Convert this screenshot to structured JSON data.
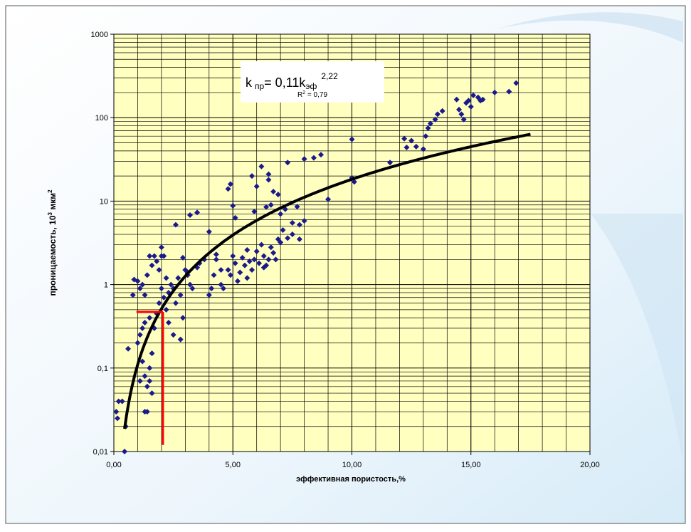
{
  "chart_data": {
    "type": "scatter",
    "x_label": "эффективная пористость,%",
    "y_label_parts": [
      "проницаемость, 10",
      "3",
      " мкм",
      "2"
    ],
    "equation_parts": [
      "k",
      "пр",
      "= 0,11k",
      "эф",
      "2,22"
    ],
    "r2_parts": [
      "R",
      "2",
      " = 0,79"
    ],
    "xlim": [
      0,
      20
    ],
    "xticks": [
      {
        "value": 0,
        "label": "0,00"
      },
      {
        "value": 5,
        "label": "5,00"
      },
      {
        "value": 10,
        "label": "10,00"
      },
      {
        "value": 15,
        "label": "15,00"
      },
      {
        "value": 20,
        "label": "20,00"
      }
    ],
    "x_minor_step": 1,
    "ylim": [
      0.01,
      1000
    ],
    "yticks": [
      {
        "value": 0.01,
        "label": "0,01"
      },
      {
        "value": 0.1,
        "label": "0,1"
      },
      1,
      10,
      100,
      1000
    ],
    "log_y": true,
    "grid": true,
    "minor_grid": true,
    "plot_color": "#ffffc0",
    "series": [
      {
        "color": "#1a1a8c",
        "x": [
          0.1,
          0.15,
          0.2,
          0.35,
          0.5,
          0.45,
          0.6,
          0.8,
          0.85,
          1.0,
          1.1,
          1.2,
          1.3,
          1.4,
          1.5,
          1.6,
          1.7,
          1.8,
          1.9,
          2.0,
          2.1,
          2.2,
          1.5,
          1.3,
          1.2,
          1.1,
          1.0,
          1.2,
          1.3,
          1.4,
          1.5,
          1.6,
          1.1,
          1.3,
          1.4,
          1.5,
          1.6,
          1.7,
          1.8,
          1.9,
          2.0,
          2.1,
          2.2,
          2.3,
          2.4,
          2.5,
          2.6,
          2.7,
          2.8,
          2.9,
          2.3,
          2.5,
          2.8,
          3.0,
          3.1,
          3.2,
          3.3,
          3.5,
          3.6,
          3.8,
          4.0,
          4.1,
          4.2,
          4.3,
          4.5,
          4.6,
          4.8,
          5.0,
          5.1,
          5.3,
          5.5,
          5.6,
          5.7,
          5.8,
          5.9,
          6.0,
          6.1,
          6.2,
          6.3,
          6.4,
          6.5,
          6.6,
          6.7,
          6.8,
          6.9,
          7.0,
          7.1,
          7.3,
          7.5,
          7.8,
          8.0,
          5.6,
          5.2,
          4.9,
          3.1,
          2.9,
          3.2,
          3.5,
          4.0,
          4.3,
          4.5,
          2.6,
          4.8,
          4.9,
          5.0,
          5.1,
          5.8,
          6.0,
          6.2,
          6.4,
          6.5,
          6.5,
          6.6,
          6.7,
          6.9,
          5.9,
          7.0,
          7.2,
          7.3,
          7.5,
          7.7,
          8.0,
          8.4,
          8.7,
          9.0,
          10.0,
          10.0,
          10.1,
          11.6,
          12.2,
          12.3,
          12.5,
          12.7,
          13.0,
          13.1,
          13.2,
          13.3,
          13.5,
          13.6,
          13.8,
          14.5,
          14.6,
          14.7,
          14.8,
          14.9,
          15.0,
          15.1,
          15.3,
          15.4,
          15.5,
          16.0,
          16.6,
          16.9,
          14.4,
          7.8,
          6.3,
          5.4,
          2.0
        ],
        "values": [
          0.03,
          0.025,
          0.04,
          0.04,
          0.02,
          0.01,
          0.17,
          0.75,
          1.15,
          1.1,
          0.9,
          1.0,
          0.75,
          1.3,
          2.2,
          1.7,
          2.2,
          1.9,
          1.5,
          2.8,
          2.2,
          1.2,
          0.4,
          0.35,
          0.3,
          0.25,
          0.2,
          0.12,
          0.08,
          0.06,
          0.07,
          0.05,
          0.07,
          0.03,
          0.03,
          0.1,
          0.15,
          0.3,
          0.45,
          0.6,
          0.9,
          0.7,
          0.5,
          0.8,
          1.0,
          0.9,
          0.6,
          1.2,
          0.75,
          0.4,
          0.35,
          0.25,
          0.22,
          1.5,
          1.3,
          1.0,
          0.9,
          1.6,
          1.8,
          2.0,
          0.75,
          0.9,
          1.3,
          2.0,
          1.5,
          0.9,
          1.5,
          2.2,
          1.8,
          1.4,
          1.7,
          2.6,
          1.9,
          1.5,
          2.0,
          2.5,
          1.8,
          3.0,
          2.2,
          1.7,
          2.0,
          2.8,
          2.4,
          2.0,
          3.5,
          3.2,
          4.5,
          3.6,
          4.0,
          5.2,
          5.8,
          1.2,
          1.1,
          1.3,
          1.4,
          2.1,
          6.8,
          7.3,
          4.3,
          2.3,
          1.0,
          5.2,
          14,
          16,
          8.8,
          6.3,
          20,
          15,
          26,
          8.5,
          18,
          21,
          9,
          13,
          12,
          7.5,
          7.0,
          8,
          29,
          5.5,
          8.6,
          32,
          33,
          36,
          10.5,
          55,
          19,
          17,
          29,
          56,
          44,
          53,
          45,
          42,
          60,
          75,
          85,
          95,
          110,
          120,
          125,
          110,
          95,
          150,
          160,
          135,
          185,
          175,
          160,
          165,
          200,
          205,
          260,
          165,
          3.5,
          1.6,
          2.1,
          2.2
        ]
      }
    ],
    "trendline": {
      "coefficient": 0.11,
      "exponent": 2.22,
      "x_range": [
        0.45,
        17.5
      ],
      "color": "#000000"
    },
    "reference_lines": {
      "x": 2.06,
      "y": 0.47,
      "x_start": 0.95,
      "y_end": 0.012,
      "color": "#ff0000"
    }
  }
}
